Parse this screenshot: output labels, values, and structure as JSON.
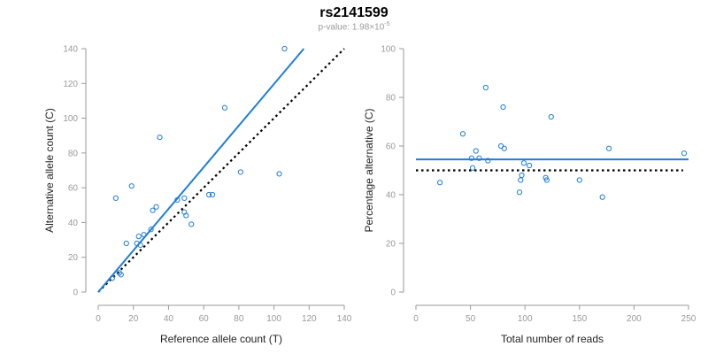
{
  "figure": {
    "title": "rs2141599",
    "pvalue_label": "p-value:",
    "pvalue_mantissa": "1.98",
    "pvalue_times": "×10",
    "pvalue_exponent": "-5"
  },
  "colors": {
    "accent": "#1f7ed8",
    "axis": "#9a9a9a",
    "text": "#222222",
    "reference": "#000000"
  },
  "chart_data": [
    {
      "type": "scatter",
      "title": "",
      "xlabel": "Reference allele count (T)",
      "ylabel": "Alternative allele count (C)",
      "xlim": [
        0,
        140
      ],
      "ylim": [
        0,
        140
      ],
      "xticks": [
        "0",
        "20",
        "40",
        "60",
        "80",
        "100",
        "120",
        "140"
      ],
      "yticks": [
        "0",
        "20",
        "40",
        "60",
        "80",
        "100",
        "120",
        "140"
      ],
      "grid": false,
      "points": [
        [
          10,
          54
        ],
        [
          19,
          61
        ],
        [
          16,
          28
        ],
        [
          12,
          11
        ],
        [
          13,
          10
        ],
        [
          8,
          8
        ],
        [
          22,
          28
        ],
        [
          23,
          32
        ],
        [
          24,
          27
        ],
        [
          26,
          33
        ],
        [
          30,
          36
        ],
        [
          31,
          47
        ],
        [
          33,
          49
        ],
        [
          35,
          89
        ],
        [
          45,
          53
        ],
        [
          49,
          46
        ],
        [
          50,
          44
        ],
        [
          49,
          54
        ],
        [
          53,
          39
        ],
        [
          63,
          56
        ],
        [
          65,
          56
        ],
        [
          72,
          106
        ],
        [
          81,
          69
        ],
        [
          103,
          68
        ],
        [
          106,
          140
        ]
      ],
      "fit_line": [
        [
          0,
          0
        ],
        [
          117,
          140
        ]
      ],
      "reference_line": [
        [
          0,
          0
        ],
        [
          140,
          140
        ]
      ]
    },
    {
      "type": "scatter",
      "title": "",
      "xlabel": "Total number of reads",
      "ylabel": "Percentage alternative (C)",
      "xlim": [
        0,
        250
      ],
      "ylim": [
        0,
        100
      ],
      "xticks": [
        "0",
        "50",
        "100",
        "150",
        "200",
        "250"
      ],
      "yticks": [
        "0",
        "20",
        "40",
        "60",
        "80",
        "100"
      ],
      "grid": false,
      "points": [
        [
          22,
          45
        ],
        [
          43,
          65
        ],
        [
          51,
          55
        ],
        [
          52,
          51
        ],
        [
          55,
          58
        ],
        [
          58,
          55
        ],
        [
          64,
          84
        ],
        [
          66,
          54
        ],
        [
          78,
          60
        ],
        [
          80,
          76
        ],
        [
          81,
          59
        ],
        [
          95,
          41
        ],
        [
          96,
          46
        ],
        [
          97,
          48
        ],
        [
          99,
          53
        ],
        [
          104,
          52
        ],
        [
          119,
          47
        ],
        [
          120,
          46
        ],
        [
          124,
          72
        ],
        [
          150,
          46
        ],
        [
          171,
          39
        ],
        [
          177,
          59
        ],
        [
          246,
          57
        ]
      ],
      "fit_line": [
        [
          0,
          54.5
        ],
        [
          250,
          54.5
        ]
      ],
      "reference_line": [
        [
          0,
          50
        ],
        [
          245,
          50
        ]
      ]
    }
  ]
}
